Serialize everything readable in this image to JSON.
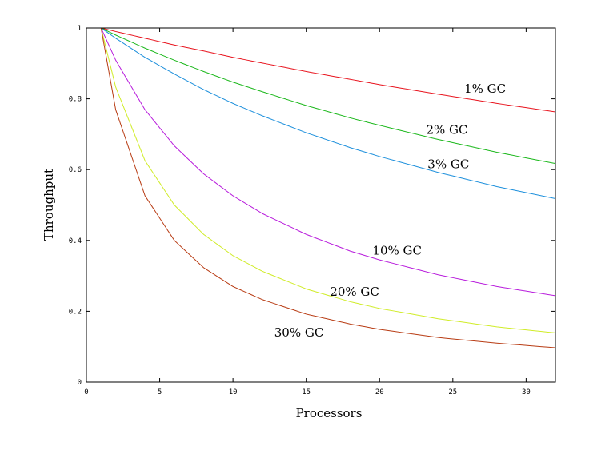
{
  "chart_data": {
    "type": "line",
    "title": "",
    "xlabel": "Processors",
    "ylabel": "Throughput",
    "xlim": [
      0,
      32
    ],
    "ylim": [
      0,
      1
    ],
    "xticks": [
      0,
      5,
      10,
      15,
      20,
      25,
      30
    ],
    "xtick_labels": [
      "0",
      "5",
      "10",
      "15",
      "20",
      "25",
      "30"
    ],
    "yticks": [
      0,
      0.2,
      0.4,
      0.6,
      0.8,
      1
    ],
    "ytick_labels": [
      "0",
      "0.2",
      "0.4",
      "0.6",
      "0.8",
      "1"
    ],
    "grid": false,
    "legend": "none (series labelled inline)",
    "series": [
      {
        "name": "1% GC",
        "gc_fraction": 0.01,
        "color": "#e8141e",
        "x": [
          1,
          2,
          4,
          6,
          8,
          10,
          12,
          15,
          18,
          20,
          24,
          28,
          32
        ],
        "y": [
          1.0,
          0.99,
          0.971,
          0.952,
          0.935,
          0.917,
          0.901,
          0.877,
          0.855,
          0.84,
          0.813,
          0.787,
          0.763
        ]
      },
      {
        "name": "2% GC",
        "gc_fraction": 0.02,
        "color": "#1cb81c",
        "x": [
          1,
          2,
          4,
          6,
          8,
          10,
          12,
          15,
          18,
          20,
          24,
          28,
          32
        ],
        "y": [
          1.0,
          0.98,
          0.943,
          0.909,
          0.877,
          0.847,
          0.82,
          0.781,
          0.746,
          0.725,
          0.685,
          0.649,
          0.617
        ]
      },
      {
        "name": "3% GC",
        "gc_fraction": 0.03,
        "color": "#1e90dc",
        "x": [
          1,
          2,
          4,
          6,
          8,
          10,
          12,
          15,
          18,
          20,
          24,
          28,
          32
        ],
        "y": [
          1.0,
          0.971,
          0.917,
          0.87,
          0.826,
          0.787,
          0.752,
          0.704,
          0.662,
          0.637,
          0.592,
          0.552,
          0.518
        ]
      },
      {
        "name": "10% GC",
        "gc_fraction": 0.1,
        "color": "#b81cdc",
        "x": [
          1,
          2,
          4,
          6,
          8,
          10,
          12,
          15,
          18,
          20,
          24,
          28,
          32
        ],
        "y": [
          1.0,
          0.909,
          0.769,
          0.667,
          0.588,
          0.526,
          0.476,
          0.417,
          0.37,
          0.345,
          0.303,
          0.27,
          0.244
        ]
      },
      {
        "name": "20% GC",
        "gc_fraction": 0.2,
        "color": "#d0ec28",
        "x": [
          1,
          2,
          4,
          6,
          8,
          10,
          12,
          15,
          18,
          20,
          24,
          28,
          32
        ],
        "y": [
          1.0,
          0.833,
          0.625,
          0.5,
          0.417,
          0.357,
          0.313,
          0.263,
          0.227,
          0.208,
          0.179,
          0.156,
          0.139
        ]
      },
      {
        "name": "30% GC",
        "gc_fraction": 0.3,
        "color": "#b83c14",
        "x": [
          1,
          2,
          4,
          6,
          8,
          10,
          12,
          15,
          18,
          20,
          24,
          28,
          32
        ],
        "y": [
          1.0,
          0.769,
          0.526,
          0.4,
          0.323,
          0.27,
          0.233,
          0.192,
          0.164,
          0.149,
          0.126,
          0.11,
          0.097
        ]
      }
    ],
    "annotations": [
      {
        "series": "1% GC",
        "text": "1% GC",
        "x": 27.2,
        "y": 0.828
      },
      {
        "series": "2% GC",
        "text": "2% GC",
        "x": 24.6,
        "y": 0.712
      },
      {
        "series": "3% GC",
        "text": "3% GC",
        "x": 24.7,
        "y": 0.615
      },
      {
        "series": "10% GC",
        "text": "10% GC",
        "x": 21.2,
        "y": 0.371
      },
      {
        "series": "20% GC",
        "text": "20% GC",
        "x": 18.3,
        "y": 0.255
      },
      {
        "series": "30% GC",
        "text": "30% GC",
        "x": 14.5,
        "y": 0.14
      }
    ]
  }
}
